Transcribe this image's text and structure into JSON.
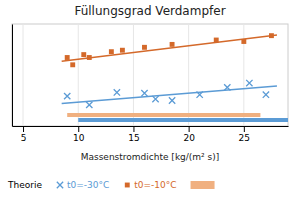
{
  "chart_data": {
    "type": "scatter",
    "title": "Füllungsgrad Verdampfer",
    "xlabel": "Massenstromdichte [kg/(m² s)]",
    "xlim": [
      4,
      29
    ],
    "xticks": [
      5,
      10,
      15,
      20,
      25
    ],
    "ylim": [
      0.25,
      0.95
    ],
    "yticks": [],
    "grid": true,
    "tick_labels": "x",
    "annotations": [
      "Theorie"
    ],
    "series": [
      {
        "name": "t0=-30°C",
        "type": "scatter",
        "marker": "x",
        "color": "#5b9bd5",
        "x": [
          9.0,
          11.0,
          13.5,
          16.0,
          17.0,
          18.5,
          21.0,
          23.5,
          25.5,
          27.0
        ],
        "values": [
          0.455,
          0.395,
          0.48,
          0.475,
          0.435,
          0.425,
          0.465,
          0.515,
          0.545,
          0.465
        ]
      },
      {
        "name": "t0=-10°C",
        "type": "scatter",
        "marker": "square",
        "color": "#d4692a",
        "x": [
          9.0,
          9.5,
          10.5,
          11.0,
          13.0,
          14.0,
          16.0,
          18.5,
          22.5,
          25.0,
          27.5
        ],
        "values": [
          0.72,
          0.67,
          0.74,
          0.72,
          0.76,
          0.77,
          0.79,
          0.81,
          0.84,
          0.83,
          0.87
        ]
      },
      {
        "type": "line",
        "color": "#5b9bd5",
        "x": [
          8.5,
          28.0
        ],
        "values": [
          0.405,
          0.525
        ]
      },
      {
        "type": "line",
        "color": "#d4692a",
        "x": [
          8.5,
          28.0
        ],
        "values": [
          0.695,
          0.875
        ]
      },
      {
        "type": "span",
        "color": "#f0b080",
        "x": [
          9.0,
          26.5
        ]
      },
      {
        "type": "span",
        "color": "#5b9bd5",
        "x": [
          10.0,
          29.0
        ]
      }
    ]
  }
}
